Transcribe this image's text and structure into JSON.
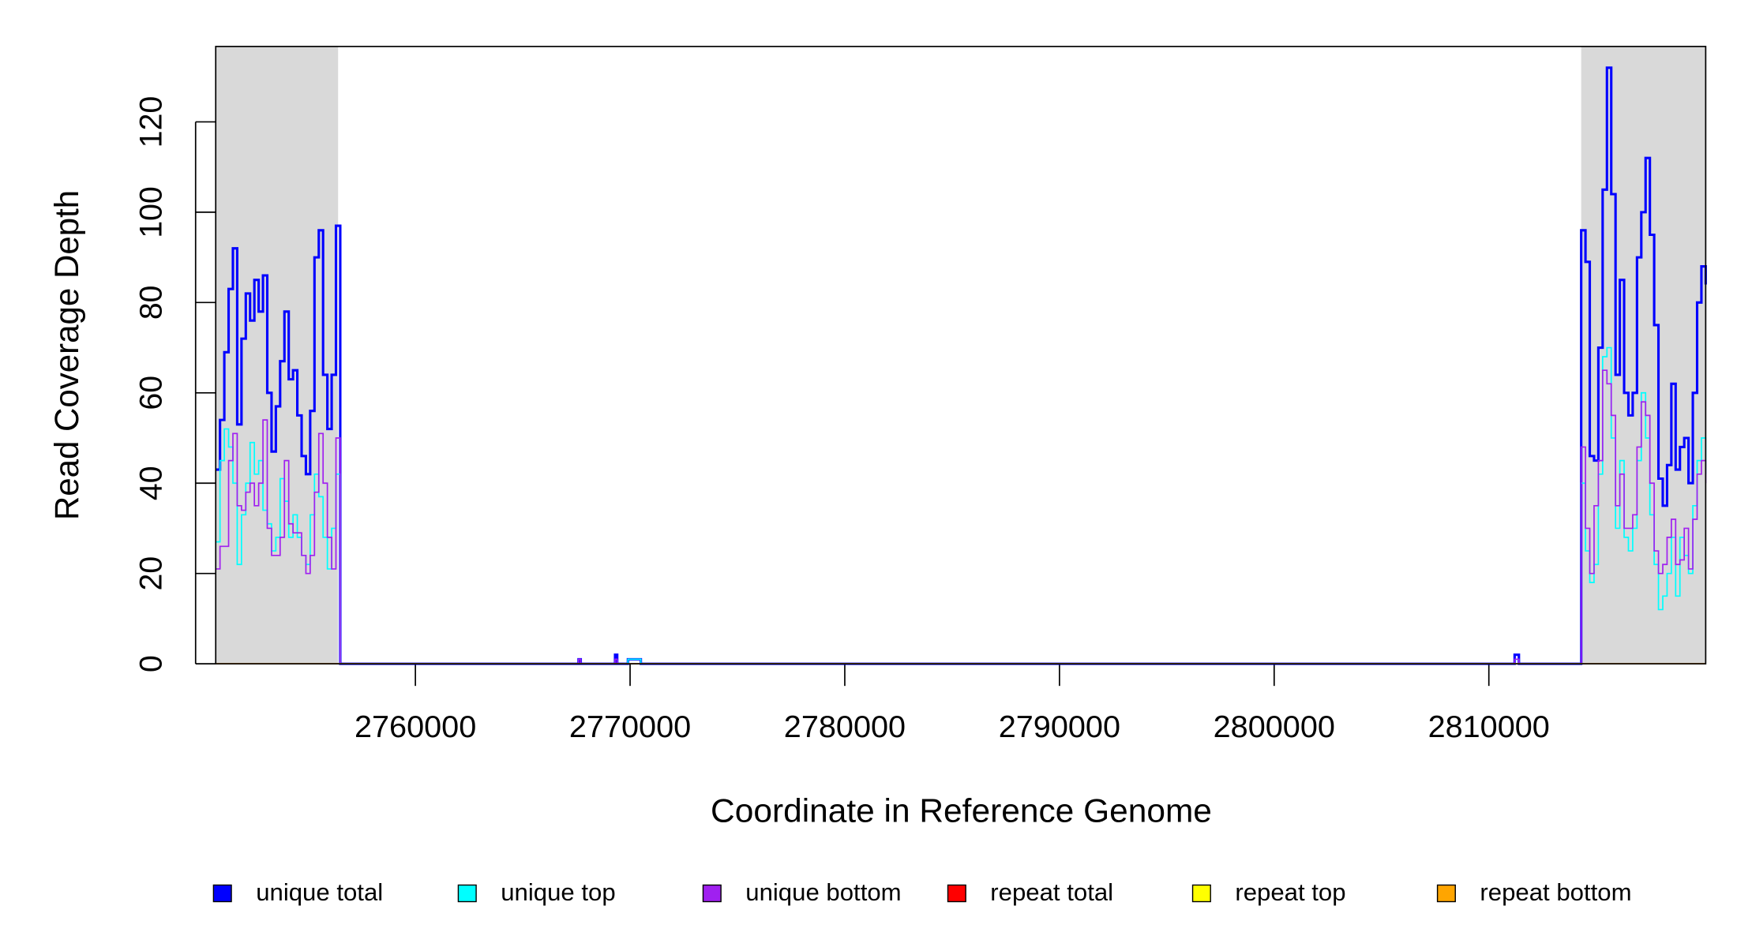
{
  "chart_data": {
    "type": "step",
    "xlabel": "Coordinate in Reference Genome",
    "ylabel": "Read Coverage Depth",
    "xlim": [
      2750700,
      2820100
    ],
    "ylim": [
      0,
      136.7
    ],
    "xticks": [
      2760000,
      2770000,
      2780000,
      2790000,
      2800000,
      2810000
    ],
    "yticks": [
      0,
      20,
      40,
      60,
      80,
      100,
      120
    ],
    "shaded_regions": [
      [
        2750700,
        2756400
      ],
      [
        2814300,
        2820100
      ]
    ],
    "shade_color": "#d9d9d9",
    "legend": "bottom",
    "x": [
      2750700,
      2750900,
      2751100,
      2751300,
      2751500,
      2751700,
      2751900,
      2752100,
      2752300,
      2752500,
      2752700,
      2752900,
      2753100,
      2753300,
      2753500,
      2753700,
      2753900,
      2754100,
      2754300,
      2754500,
      2754700,
      2754900,
      2755100,
      2755300,
      2755500,
      2755700,
      2755900,
      2756100,
      2756300,
      2756500,
      2767600,
      2767700,
      2769300,
      2769400,
      2769900,
      2770500,
      2811200,
      2811400,
      2814300,
      2814500,
      2814700,
      2814900,
      2815100,
      2815300,
      2815500,
      2815700,
      2815900,
      2816100,
      2816300,
      2816500,
      2816700,
      2816900,
      2817100,
      2817300,
      2817500,
      2817700,
      2817900,
      2818100,
      2818300,
      2818500,
      2818700,
      2818900,
      2819100,
      2819300,
      2819500,
      2819700,
      2819900,
      2820100
    ],
    "series": [
      {
        "name": "unique total",
        "color": "#0000ff",
        "width": 2.2,
        "values": [
          43,
          54,
          69,
          83,
          92,
          53,
          72,
          82,
          76,
          85,
          78,
          86,
          60,
          47,
          57,
          67,
          78,
          63,
          65,
          55,
          46,
          42,
          56,
          90,
          96,
          64,
          52,
          64,
          97,
          0,
          1,
          0,
          2,
          0,
          1,
          0,
          2,
          0,
          96,
          89,
          46,
          45,
          70,
          105,
          132,
          104,
          64,
          85,
          60,
          55,
          60,
          90,
          100,
          112,
          95,
          75,
          41,
          35,
          44,
          62,
          43,
          48,
          50,
          40,
          60,
          80,
          88,
          84
        ]
      },
      {
        "name": "unique top",
        "color": "#00ffff",
        "width": 1.2,
        "values": [
          27,
          45,
          52,
          48,
          40,
          22,
          33,
          40,
          49,
          42,
          45,
          34,
          31,
          25,
          28,
          41,
          36,
          28,
          33,
          28,
          24,
          22,
          33,
          42,
          37,
          28,
          21,
          30,
          42,
          0,
          0,
          0,
          0,
          0,
          1,
          0,
          1,
          0,
          40,
          25,
          18,
          22,
          42,
          68,
          70,
          50,
          30,
          45,
          28,
          25,
          30,
          45,
          60,
          50,
          33,
          22,
          12,
          15,
          20,
          28,
          15,
          28,
          24,
          20,
          35,
          45,
          50,
          42
        ]
      },
      {
        "name": "unique bottom",
        "color": "#a020f0",
        "width": 1.2,
        "values": [
          21,
          26,
          26,
          45,
          51,
          35,
          34,
          38,
          40,
          35,
          40,
          54,
          30,
          24,
          24,
          28,
          45,
          31,
          29,
          29,
          24,
          20,
          24,
          38,
          51,
          40,
          28,
          21,
          50,
          0,
          1,
          0,
          1,
          0,
          0,
          0,
          1,
          0,
          48,
          30,
          20,
          35,
          45,
          65,
          62,
          55,
          35,
          42,
          30,
          30,
          33,
          48,
          58,
          55,
          40,
          25,
          20,
          22,
          28,
          32,
          22,
          23,
          30,
          21,
          32,
          42,
          45,
          40
        ]
      },
      {
        "name": "repeat total",
        "color": "#ff0000",
        "width": 1.2,
        "values": [
          0,
          0,
          0,
          0,
          0,
          0,
          0,
          0,
          0,
          0,
          0,
          0,
          0,
          0,
          0,
          0,
          0,
          0,
          0,
          0,
          0,
          0,
          0,
          0,
          0,
          0,
          0,
          0,
          0,
          0,
          0,
          0,
          0,
          0,
          0,
          0,
          0,
          0,
          0,
          0,
          0,
          0,
          0,
          0,
          0,
          0,
          0,
          0,
          0,
          0,
          0,
          0,
          0,
          0,
          0,
          0,
          0,
          0,
          0,
          0,
          0,
          0,
          0,
          0,
          0,
          0,
          0,
          0
        ]
      },
      {
        "name": "repeat top",
        "color": "#ffff00",
        "width": 1.2,
        "values": [
          0,
          0,
          0,
          0,
          0,
          0,
          0,
          0,
          0,
          0,
          0,
          0,
          0,
          0,
          0,
          0,
          0,
          0,
          0,
          0,
          0,
          0,
          0,
          0,
          0,
          0,
          0,
          0,
          0,
          0,
          0,
          0,
          0,
          0,
          0,
          0,
          0,
          0,
          0,
          0,
          0,
          0,
          0,
          0,
          0,
          0,
          0,
          0,
          0,
          0,
          0,
          0,
          0,
          0,
          0,
          0,
          0,
          0,
          0,
          0,
          0,
          0,
          0,
          0,
          0,
          0,
          0,
          0
        ]
      },
      {
        "name": "repeat bottom",
        "color": "#ffa500",
        "width": 1.2,
        "values": [
          0,
          0,
          0,
          0,
          0,
          0,
          0,
          0,
          0,
          0,
          0,
          0,
          0,
          0,
          0,
          0,
          0,
          0,
          0,
          0,
          0,
          0,
          0,
          0,
          0,
          0,
          0,
          0,
          0,
          0,
          0,
          0,
          0,
          0,
          0,
          0,
          0,
          0,
          0,
          0,
          0,
          0,
          0,
          0,
          0,
          0,
          0,
          0,
          0,
          0,
          0,
          0,
          0,
          0,
          0,
          0,
          0,
          0,
          0,
          0,
          0,
          0,
          0,
          0,
          0,
          0,
          0,
          0
        ]
      }
    ]
  }
}
